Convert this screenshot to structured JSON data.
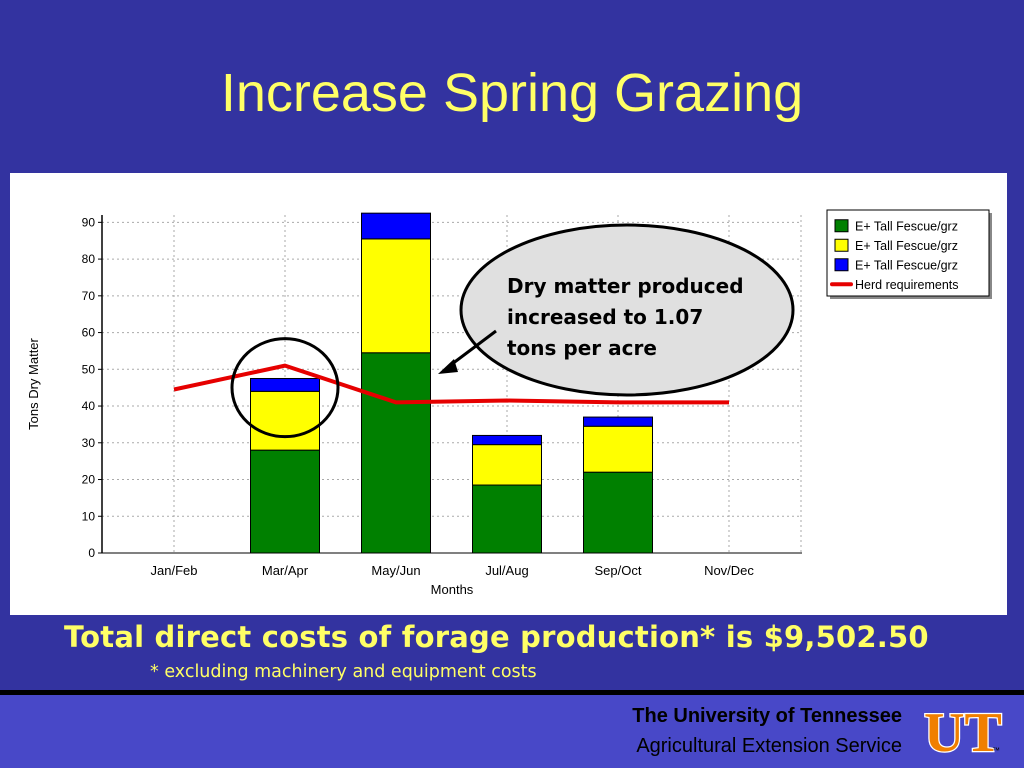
{
  "slide": {
    "title": "Increase Spring Grazing",
    "cost_text": "Total direct costs of forage production* is $9,502.50",
    "note_text": "* excluding machinery and equipment costs",
    "org_name": "The University of Tennessee",
    "org_sub": "Agricultural Extension Service",
    "logo_letters": "UT",
    "logo_tm": "™"
  },
  "colors": {
    "background": "#3333a0",
    "title": "#ffff66",
    "green": "#008000",
    "yellow": "#ffff00",
    "blue": "#0000ff",
    "herd": "#e60000"
  },
  "chart_data": {
    "type": "bar",
    "stacked": true,
    "categories": [
      "Jan/Feb",
      "Mar/Apr",
      "May/Jun",
      "Jul/Aug",
      "Sep/Oct",
      "Nov/Dec"
    ],
    "series": [
      {
        "name": "E+ Tall Fescue/grz",
        "color": "#008000",
        "values": [
          0,
          28,
          54.5,
          18.5,
          22,
          0
        ]
      },
      {
        "name": "E+ Tall Fescue/grz",
        "color": "#ffff00",
        "values": [
          0,
          16,
          31,
          11,
          12.5,
          0
        ]
      },
      {
        "name": "E+ Tall Fescue/grz",
        "color": "#0000ff",
        "values": [
          0,
          3.5,
          7,
          2.5,
          2.5,
          0
        ]
      }
    ],
    "line_series": {
      "name": "Herd requirements",
      "color": "#e60000",
      "values": [
        44.5,
        51,
        41,
        41.5,
        41,
        41
      ]
    },
    "xlabel": "Months",
    "ylabel": "Tons Dry Matter",
    "ylim": [
      0,
      92
    ],
    "yticks": [
      0,
      10,
      20,
      30,
      40,
      50,
      60,
      70,
      80,
      90
    ],
    "grid": true,
    "legend_position": "top-right",
    "annotation": "Dry matter produced increased to 1.07 tons per acre"
  }
}
